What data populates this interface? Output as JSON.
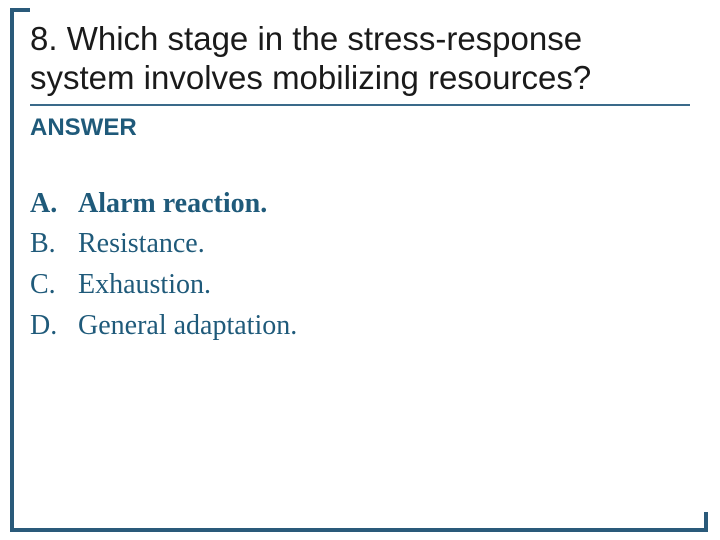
{
  "question": "8. Which stage in the stress-response system involves mobilizing resources?",
  "answer_label": "ANSWER",
  "options": [
    {
      "letter": "A.",
      "text": "Alarm reaction.",
      "correct": true
    },
    {
      "letter": "B.",
      "text": "Resistance.",
      "correct": false
    },
    {
      "letter": "C.",
      "text": "Exhaustion.",
      "correct": false
    },
    {
      "letter": "D.",
      "text": "General adaptation.",
      "correct": false
    }
  ],
  "colors": {
    "frame": "#2a5a7a",
    "question_text": "#1a1a1a",
    "accent_text": "#1f5a7a",
    "underline": "#3a6a8a",
    "background": "#ffffff"
  },
  "typography": {
    "question_font": "Arial",
    "question_size_pt": 25,
    "answer_label_size_pt": 18,
    "option_font": "Times New Roman",
    "option_size_pt": 21
  }
}
